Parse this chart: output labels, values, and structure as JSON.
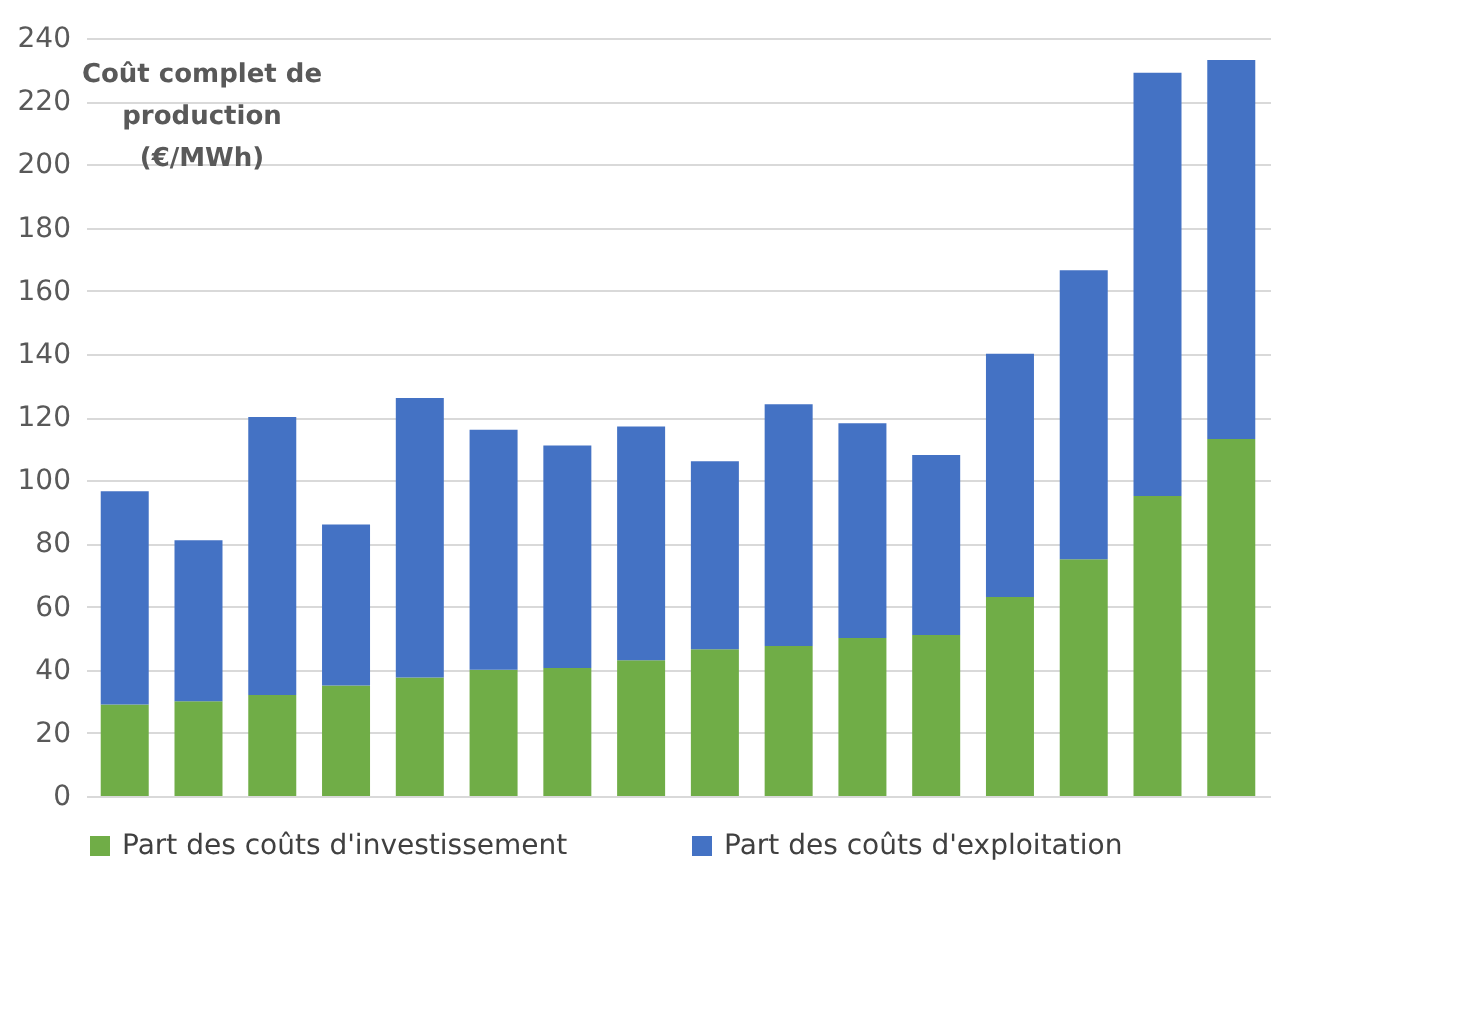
{
  "chart_data": {
    "type": "bar",
    "stacked": true,
    "ylabel": "Coût complet de\nproduction\n(€/MWh)",
    "categories": [
      null,
      null,
      null,
      null,
      null,
      null,
      null,
      null,
      null,
      null,
      null,
      null,
      null,
      null,
      null,
      null
    ],
    "series": [
      {
        "name": "Part des coûts d'investissement",
        "color": "#70ad47",
        "values": [
          29,
          30,
          32,
          35,
          37.5,
          40,
          40.5,
          43,
          46.5,
          47.5,
          50,
          51,
          63,
          75,
          95,
          113
        ]
      },
      {
        "name": "Part des coûts d'exploitation",
        "color": "#4472c4",
        "values": [
          67.5,
          51,
          88,
          51,
          88.5,
          76,
          70.5,
          74,
          59.5,
          76.5,
          68,
          57,
          77,
          91.5,
          134,
          120
        ]
      }
    ],
    "ylim": [
      0,
      240
    ],
    "yticks": [
      0,
      20,
      40,
      60,
      80,
      100,
      120,
      140,
      160,
      180,
      200,
      220,
      240
    ],
    "grid": "y",
    "legend": "bottom",
    "tick_labels": "y"
  }
}
